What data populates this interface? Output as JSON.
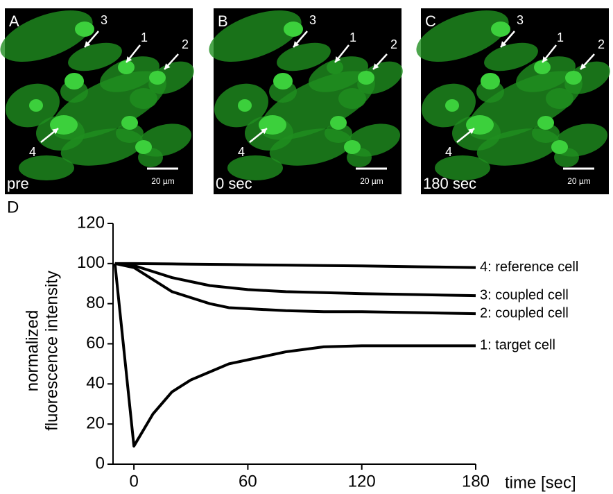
{
  "panels": [
    {
      "letter": "A",
      "time": "pre",
      "scale": "20 µm",
      "arrows": [
        "3",
        "1",
        "2",
        "4"
      ]
    },
    {
      "letter": "B",
      "time": "0 sec",
      "scale": "20 µm",
      "arrows": [
        "3",
        "1",
        "2",
        "4"
      ]
    },
    {
      "letter": "C",
      "time": "180 sec",
      "scale": "20 µm",
      "arrows": [
        "3",
        "1",
        "2",
        "4"
      ]
    }
  ],
  "chart_data": {
    "type": "line",
    "panel": "D",
    "ylabel": [
      "normalized",
      "fluorescence intensity"
    ],
    "xlabel": "time [sec]",
    "x": [
      -10,
      0,
      10,
      20,
      30,
      40,
      50,
      60,
      80,
      100,
      120,
      150,
      180
    ],
    "series": [
      {
        "name": "1: target cell",
        "color": "#000000",
        "values": [
          100,
          9,
          25,
          36,
          42,
          46,
          50,
          52,
          56,
          58.5,
          59,
          59,
          59
        ]
      },
      {
        "name": "2: coupled cell",
        "color": "#000000",
        "values": [
          100,
          98,
          92,
          86,
          83,
          80,
          78,
          77.5,
          76.5,
          76,
          76,
          75.5,
          75
        ]
      },
      {
        "name": "3: coupled cell",
        "color": "#000000",
        "values": [
          100,
          99,
          96,
          93,
          91,
          89,
          88,
          87,
          86,
          85.5,
          85,
          84.5,
          84
        ]
      },
      {
        "name": "4: reference cell",
        "color": "#000000",
        "values": [
          100,
          100,
          99.9,
          99.8,
          99.7,
          99.6,
          99.5,
          99.4,
          99.2,
          99,
          98.8,
          98.4,
          98
        ]
      }
    ],
    "xlim": [
      -11,
      180
    ],
    "xticks": [
      0,
      60,
      120,
      180
    ],
    "ylim": [
      0,
      120
    ],
    "yticks": [
      0,
      20,
      40,
      60,
      80,
      100,
      120
    ]
  }
}
